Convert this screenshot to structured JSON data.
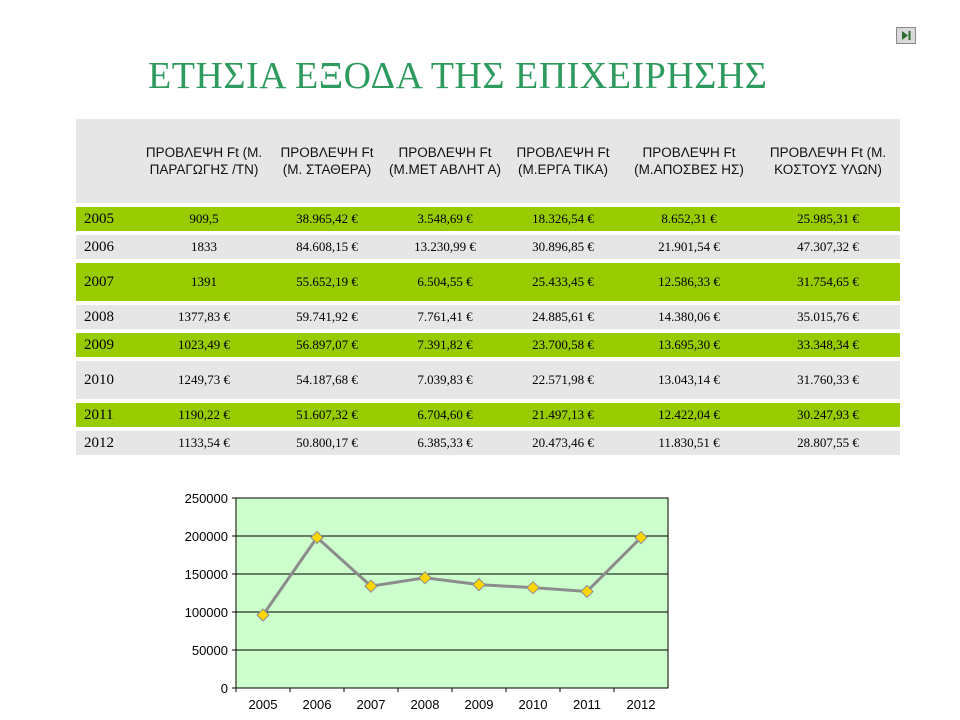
{
  "title": "ΕΤΗΣΙΑ ΕΞΟΔΑ ΤΗΣ ΕΠΙΧΕΙΡΗΣΗΣ",
  "nav": {
    "play_icon": "play-next-icon"
  },
  "table": {
    "headers": [
      "",
      "ΠΡΟΒΛΕΨΗ Ft (Μ. ΠΑΡΑΓΩΓΗΣ /ΤΝ)",
      "ΠΡΟΒΛΕΨΗ Ft (Μ. ΣΤΑΘΕΡΑ)",
      "ΠΡΟΒΛΕΨΗ Ft (Μ.ΜΕΤ ΑΒΛΗΤ Α)",
      "ΠΡΟΒΛΕΨΗ Ft (Μ.ΕΡΓΑ ΤΙΚΑ)",
      "ΠΡΟΒΛΕΨΗ Ft (Μ.ΑΠΟΣΒΕΣ ΗΣ)",
      "ΠΡΟΒΛΕΨΗ Ft (Μ. ΚΟΣΤΟΥΣ ΥΛΩΝ)"
    ],
    "rows": [
      {
        "year": "2005",
        "cells": [
          "909,5",
          "38.965,42 €",
          "3.548,69 €",
          "18.326,54 €",
          "8.652,31 €",
          "25.985,31 €"
        ],
        "style": "green"
      },
      {
        "year": "2006",
        "cells": [
          "1833",
          "84.608,15 €",
          "13.230,99 €",
          "30.896,85 €",
          "21.901,54 €",
          "47.307,32 €"
        ],
        "style": "grey"
      },
      {
        "year": "2007",
        "cells": [
          "1391",
          "55.652,19 €",
          "6.504,55 €",
          "25.433,45 €",
          "12.586,33 €",
          "31.754,65 €"
        ],
        "style": "green"
      },
      {
        "year": "2008",
        "cells": [
          "1377,83 €",
          "59.741,92 €",
          "7.761,41 €",
          "24.885,61 €",
          "14.380,06 €",
          "35.015,76 €"
        ],
        "style": "grey"
      },
      {
        "year": "2009",
        "cells": [
          "1023,49 €",
          "56.897,07 €",
          "7.391,82 €",
          "23.700,58 €",
          "13.695,30 €",
          "33.348,34 €"
        ],
        "style": "green"
      },
      {
        "year": "2010",
        "cells": [
          "1249,73 €",
          "54.187,68 €",
          "7.039,83 €",
          "22.571,98 €",
          "13.043,14 €",
          "31.760,33 €"
        ],
        "style": "grey"
      },
      {
        "year": "2011",
        "cells": [
          "1190,22 €",
          "51.607,32 €",
          "6.704,60 €",
          "21.497,13 €",
          "12.422,04 €",
          "30.247,93 €"
        ],
        "style": "green"
      },
      {
        "year": "2012",
        "cells": [
          "1133,54 €",
          "50.800,17 €",
          "6.385,33 €",
          "20.473,46 €",
          "11.830,51 €",
          "28.807,55 €"
        ],
        "style": "grey"
      }
    ]
  },
  "chart_data": {
    "type": "line",
    "categories": [
      "2005",
      "2006",
      "2007",
      "2008",
      "2009",
      "2010",
      "2011",
      "2012"
    ],
    "series": [
      {
        "values": [
          96000,
          198000,
          134000,
          145000,
          136000,
          132000,
          127000,
          198000
        ]
      }
    ],
    "ylim": [
      0,
      250000
    ],
    "yticks": [
      "0",
      "50000",
      "100000",
      "150000",
      "200000",
      "250000"
    ],
    "grid": true,
    "plot_background": "#ccffcc",
    "line_color": "#8c8c8c",
    "marker_color": "#ffd700"
  }
}
